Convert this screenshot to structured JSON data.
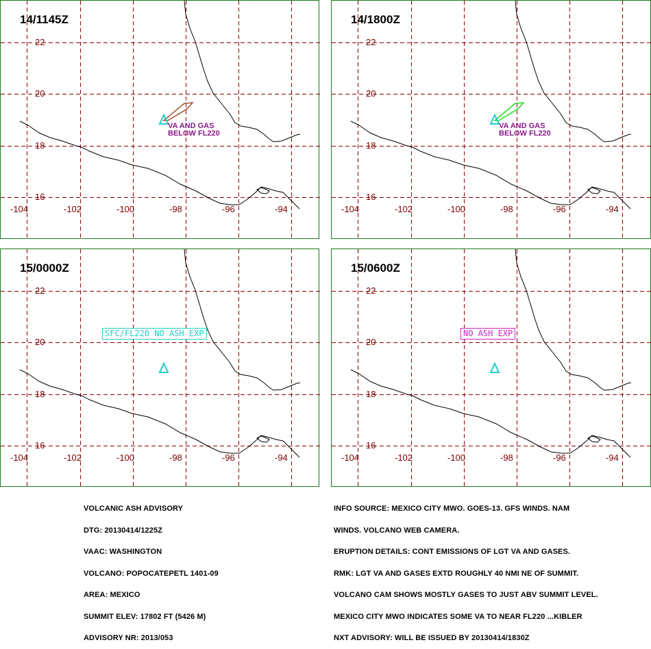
{
  "axes": {
    "lat_labels": [
      "22",
      "20",
      "18",
      "16"
    ],
    "lon_labels": [
      "-104",
      "-102",
      "-100",
      "-98",
      "-96",
      "-94"
    ]
  },
  "panels": [
    {
      "time": "14/1145Z",
      "note_lines": [
        "VA AND GAS",
        "BELOW FL220"
      ],
      "polygon_color": "#a0522d",
      "box_text": ""
    },
    {
      "time": "14/1800Z",
      "note_lines": [
        "VA AND GAS",
        "BELOW FL220"
      ],
      "polygon_color": "#22dd22",
      "box_text": ""
    },
    {
      "time": "15/0000Z",
      "note_lines": [],
      "polygon_color": "",
      "box_text": "SFC/FL220 NO ASH EXP",
      "box_color": "#22cccc"
    },
    {
      "time": "15/0600Z",
      "note_lines": [],
      "polygon_color": "",
      "box_text": "NO ASH EXP",
      "box_color": "#cc22cc"
    }
  ],
  "colors": {
    "border": "#1a7a1a",
    "grid": "#8b0000",
    "coast": "#000000",
    "volcano": "#22cccc",
    "label": "#7a0000",
    "note": "#8a1a8a"
  },
  "advisory_left": [
    "VOLCANIC ASH ADVISORY",
    "DTG: 20130414/1225Z",
    "VAAC: WASHINGTON",
    "VOLCANO: POPOCATEPETL 1401-09",
    "AREA: MEXICO",
    "SUMMIT ELEV: 17802 FT (5426 M)",
    "ADVISORY NR: 2013/053"
  ],
  "advisory_right": [
    "INFO SOURCE: MEXICO CITY MWO. GOES-13. GFS WINDS. NAM",
    "WINDS. VOLCANO WEB CAMERA.",
    "ERUPTION DETAILS: CONT EMISSIONS OF LGT VA AND GASES.",
    "RMK: LGT VA AND GASES EXTD ROUGHLY 40 NMI NE OF SUMMIT.",
    "VOLCANO CAM SHOWS MOSTLY GASES TO JUST ABV SUMMIT LEVEL.",
    "MEXICO CITY MWO INDICATES SOME VA TO NEAR FL220 ...KIBLER",
    "NXT ADVISORY: WILL BE ISSUED BY 20130414/1830Z"
  ]
}
